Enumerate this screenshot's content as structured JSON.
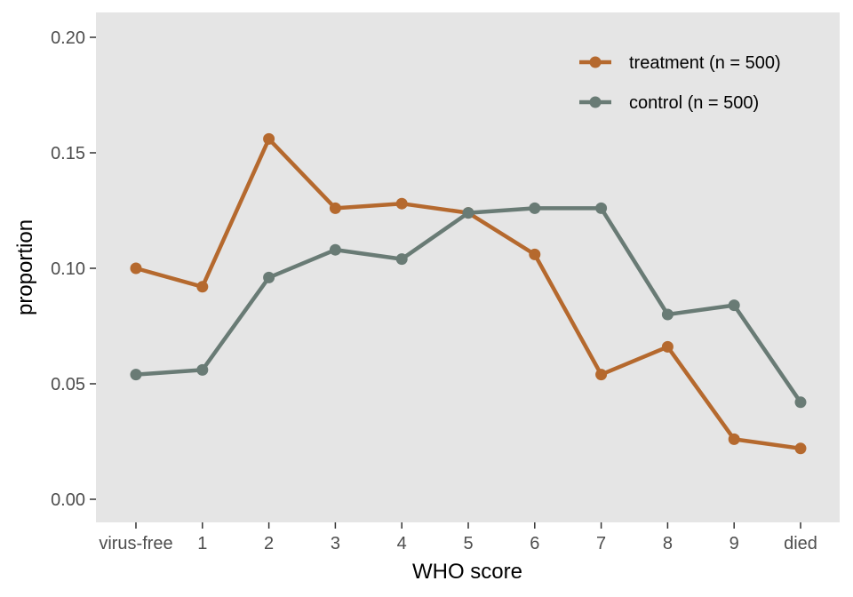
{
  "chart_data": {
    "type": "line",
    "title": "",
    "xlabel": "WHO score",
    "ylabel": "proportion",
    "categories": [
      "virus-free",
      "1",
      "2",
      "3",
      "4",
      "5",
      "6",
      "7",
      "8",
      "9",
      "died"
    ],
    "ylim": [
      0,
      0.2
    ],
    "yticks": [
      "0.00",
      "0.05",
      "0.10",
      "0.15",
      "0.20"
    ],
    "ytick_values": [
      0,
      0.05,
      0.1,
      0.15,
      0.2
    ],
    "grid": false,
    "legend_position": "top-right",
    "series": [
      {
        "name": "treatment (n = 500)",
        "color": "#b5692e",
        "values": [
          0.1,
          0.092,
          0.156,
          0.126,
          0.128,
          0.124,
          0.106,
          0.054,
          0.066,
          0.026,
          0.022
        ]
      },
      {
        "name": "control (n = 500)",
        "color": "#697b75",
        "values": [
          0.054,
          0.056,
          0.096,
          0.108,
          0.104,
          0.124,
          0.126,
          0.126,
          0.08,
          0.084,
          0.042
        ]
      }
    ],
    "panel_color": "#e5e5e5"
  }
}
